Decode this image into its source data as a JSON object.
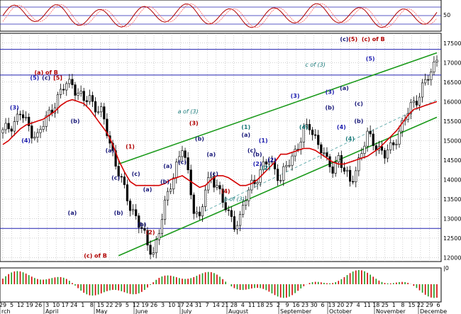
{
  "chart_data": {
    "type": "candlestick",
    "title": "",
    "colors": {
      "up_candle": "#ffffff",
      "down_candle": "#000000",
      "moving_average": "#d40000",
      "channel": "#1a9a1a",
      "horizontal_line": "#2020b0",
      "oscillator": "#b00000",
      "histogram_up": "#1a9a1a",
      "histogram_down": "#d40000",
      "grid": "#a0a0a0"
    },
    "price_axis": {
      "ticks": [
        12000,
        12500,
        13000,
        13500,
        14000,
        14500,
        15000,
        15500,
        16000,
        16500,
        17000,
        17500
      ],
      "ylim": [
        11900,
        17750
      ],
      "horizontal_lines": [
        17340,
        16680,
        12750
      ]
    },
    "oscillator_axis": {
      "ticks": [
        50
      ],
      "reference_levels": [
        "upper",
        "middle",
        "lower"
      ]
    },
    "histogram_axis": {
      "ticks": [
        "|0"
      ]
    },
    "x_axis": {
      "months": [
        "rch",
        "April",
        "May",
        "June",
        "July",
        "August",
        "September",
        "October",
        "November",
        "Decembe"
      ],
      "days": [
        "29",
        "5",
        "12",
        "19",
        "26",
        "3",
        "10",
        "17",
        "24",
        "1",
        "8",
        "15",
        "22",
        "29",
        "5",
        "12",
        "19",
        "26",
        "3",
        "10",
        "17",
        "24",
        "31",
        "7",
        "14",
        "21",
        "28",
        "4",
        "11",
        "18",
        "25",
        "2",
        "9",
        "16",
        "23",
        "30",
        "6",
        "13",
        "20",
        "27",
        "4",
        "11",
        "18",
        "25",
        "1",
        "8",
        "15",
        "22",
        "29",
        "6"
      ]
    },
    "series": [
      {
        "name": "price",
        "x_index": [
          0,
          2,
          4,
          6,
          8,
          10,
          12,
          14,
          16,
          18,
          20,
          22,
          24,
          26,
          28,
          30,
          32,
          34,
          36,
          38,
          40,
          42,
          44,
          46,
          48,
          50,
          52,
          54,
          56,
          58,
          60,
          62,
          64,
          66,
          68,
          70,
          72,
          74,
          76,
          78,
          80,
          82,
          84,
          86,
          88,
          90,
          92,
          94,
          96,
          98,
          100,
          102,
          104,
          106,
          108,
          110,
          112,
          114,
          116,
          118,
          120,
          122,
          124,
          126,
          128,
          130,
          132,
          134,
          136,
          138,
          140,
          142,
          144,
          146,
          148,
          150
        ],
        "close": [
          15200,
          15350,
          15500,
          15700,
          15450,
          15250,
          15100,
          15400,
          15700,
          16000,
          16200,
          16450,
          16500,
          16200,
          16000,
          16100,
          15900,
          15700,
          15200,
          14700,
          14200,
          13700,
          13300,
          13100,
          12700,
          12300,
          12150,
          12700,
          13300,
          13900,
          14400,
          14800,
          14100,
          13300,
          13000,
          13700,
          14100,
          13900,
          13400,
          13100,
          12900,
          13000,
          13500,
          13900,
          14100,
          14300,
          14500,
          14300,
          14000,
          14300,
          14600,
          14900,
          15200,
          15350,
          15100,
          14800,
          14400,
          14300,
          14600,
          14200,
          13900,
          14300,
          14700,
          15100,
          15000,
          14800,
          14600,
          14800,
          15100,
          15400,
          15700,
          16000,
          16200,
          16500,
          16700,
          17200
        ],
        "moving_average": [
          14900,
          15000,
          15150,
          15300,
          15400,
          15450,
          15500,
          15550,
          15650,
          15750,
          15900,
          16000,
          16050,
          16000,
          15950,
          15800,
          15600,
          15400,
          15200,
          14900,
          14500,
          14200,
          13950,
          13850,
          13850,
          13850,
          13850,
          13850,
          13900,
          14000,
          14050,
          14100,
          14000,
          13900,
          13800,
          13850,
          14000,
          14100,
          14100,
          14050,
          13950,
          13850,
          13850,
          13900,
          14000,
          14150,
          14300,
          14450,
          14650,
          14650,
          14700,
          14750,
          14800,
          14800,
          14750,
          14650,
          14550,
          14450,
          14400,
          14400,
          14450,
          14500,
          14550,
          14600,
          14700,
          14800,
          14950,
          15100,
          15250,
          15450,
          15650,
          15800,
          15850,
          15900,
          15950,
          16000
        ]
      }
    ],
    "channel_lines": [
      {
        "name": "upper",
        "points": [
          [
            40,
            14400
          ],
          [
            150,
            17250
          ]
        ]
      },
      {
        "name": "lower",
        "points": [
          [
            40,
            12050
          ],
          [
            150,
            15600
          ]
        ]
      },
      {
        "name": "mid-dashed",
        "points": [
          [
            70,
            13200
          ],
          [
            150,
            16050
          ]
        ]
      }
    ],
    "annotations": [
      {
        "text": "(a) of B",
        "x": 15,
        "y": 16700,
        "color": "#b00000"
      },
      {
        "text": "(5)",
        "x": 11,
        "y": 16560,
        "color": "#2020b0"
      },
      {
        "text": "(c)",
        "x": 15,
        "y": 16560,
        "color": "#1a1a7a"
      },
      {
        "text": "[5]",
        "x": 19,
        "y": 16560,
        "color": "#b00000"
      },
      {
        "text": "(3)",
        "x": 4,
        "y": 15800,
        "color": "#2020b0"
      },
      {
        "text": "(4)",
        "x": 8,
        "y": 14950,
        "color": "#2020b0"
      },
      {
        "text": "(b)",
        "x": 25,
        "y": 15450,
        "color": "#1a1a7a"
      },
      {
        "text": "(a)",
        "x": 24,
        "y": 13100,
        "color": "#1a1a7a"
      },
      {
        "text": "(c) of B",
        "x": 32,
        "y": 12000,
        "color": "#b00000"
      },
      {
        "text": "(a)",
        "x": 37,
        "y": 14700,
        "color": "#1a1a7a"
      },
      {
        "text": "(1)",
        "x": 44,
        "y": 14800,
        "color": "#b00000"
      },
      {
        "text": "(c)",
        "x": 39,
        "y": 14000,
        "color": "#1a1a7a"
      },
      {
        "text": "(b)",
        "x": 40,
        "y": 13100,
        "color": "#1a1a7a"
      },
      {
        "text": "(c)",
        "x": 46,
        "y": 14100,
        "color": "#1a1a7a"
      },
      {
        "text": "(a)",
        "x": 50,
        "y": 13700,
        "color": "#1a1a7a"
      },
      {
        "text": "(b)",
        "x": 48,
        "y": 12800,
        "color": "#1a1a7a"
      },
      {
        "text": "(2)",
        "x": 51,
        "y": 12600,
        "color": "#b00000"
      },
      {
        "text": "(a)",
        "x": 57,
        "y": 14300,
        "color": "#1a1a7a"
      },
      {
        "text": "(b)",
        "x": 56,
        "y": 13900,
        "color": "#1a1a7a"
      },
      {
        "text": "(c)",
        "x": 62,
        "y": 14400,
        "color": "#1a1a7a"
      },
      {
        "text": "a of (3)",
        "x": 64,
        "y": 15700,
        "color": "#1a7a7a"
      },
      {
        "text": "(3)",
        "x": 66,
        "y": 15400,
        "color": "#b00000"
      },
      {
        "text": "(b)",
        "x": 68,
        "y": 15000,
        "color": "#1a1a7a"
      },
      {
        "text": "(a)",
        "x": 72,
        "y": 14600,
        "color": "#1a1a7a"
      },
      {
        "text": "(c)",
        "x": 73,
        "y": 14100,
        "color": "#1a1a7a"
      },
      {
        "text": "(4)",
        "x": 77,
        "y": 13650,
        "color": "#b00000"
      },
      {
        "text": "b of (3)",
        "x": 80,
        "y": 13450,
        "color": "#1a7a7a"
      },
      {
        "text": "(1)",
        "x": 84,
        "y": 15300,
        "color": "#1a7a7a"
      },
      {
        "text": "(a)",
        "x": 84,
        "y": 15100,
        "color": "#1a1a7a"
      },
      {
        "text": "(c)",
        "x": 86,
        "y": 14700,
        "color": "#1a1a7a"
      },
      {
        "text": "(b)",
        "x": 88,
        "y": 14600,
        "color": "#1a1a7a"
      },
      {
        "text": "(1)",
        "x": 90,
        "y": 14950,
        "color": "#2020b0"
      },
      {
        "text": "(2)",
        "x": 88,
        "y": 14350,
        "color": "#2020b0"
      },
      {
        "text": "(2)",
        "x": 93,
        "y": 14450,
        "color": "#2020b0"
      },
      {
        "text": "(2)",
        "x": 91,
        "y": 14250,
        "color": "#1a7a7a"
      },
      {
        "text": "(3)",
        "x": 101,
        "y": 16100,
        "color": "#2020b0"
      },
      {
        "text": "(4)",
        "x": 104,
        "y": 15300,
        "color": "#1a7a7a"
      },
      {
        "text": "c of (3)",
        "x": 108,
        "y": 16900,
        "color": "#1a7a7a"
      },
      {
        "text": "(3)",
        "x": 113,
        "y": 16200,
        "color": "#2020b0"
      },
      {
        "text": "(a)",
        "x": 118,
        "y": 16300,
        "color": "#1a1a7a"
      },
      {
        "text": "(b)",
        "x": 113,
        "y": 15800,
        "color": "#1a1a7a"
      },
      {
        "text": "(c)",
        "x": 123,
        "y": 15900,
        "color": "#1a1a7a"
      },
      {
        "text": "(4)",
        "x": 117,
        "y": 15300,
        "color": "#2020b0"
      },
      {
        "text": "(b)",
        "x": 123,
        "y": 15450,
        "color": "#1a1a7a"
      },
      {
        "text": "(4)",
        "x": 120,
        "y": 15000,
        "color": "#1a7a7a"
      },
      {
        "text": "(5)",
        "x": 127,
        "y": 17050,
        "color": "#2020b0"
      },
      {
        "text": "(c)",
        "x": 118,
        "y": 17550,
        "color": "#1a1a7a"
      },
      {
        "text": "(5)",
        "x": 121,
        "y": 17550,
        "color": "#b00000"
      },
      {
        "text": "(c) of B",
        "x": 128,
        "y": 17550,
        "color": "#b00000"
      }
    ]
  }
}
